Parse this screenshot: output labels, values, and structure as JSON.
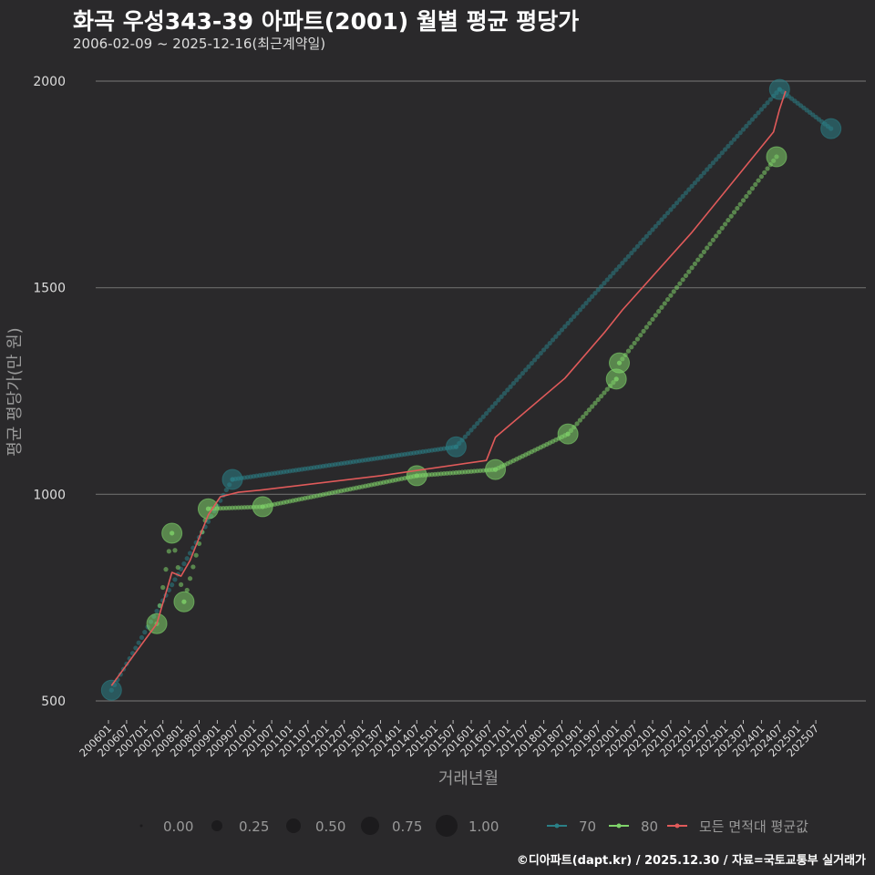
{
  "title": "화곡 우성343-39 아파트(2001) 월별 평균 평당가",
  "subtitle": "2006-02-09 ~ 2025-12-16(최근계약일)",
  "footer": "©디아파트(dapt.kr) / 2025.12.30 / 자료=국토교통부 실거래가",
  "chart_data": {
    "type": "line",
    "xlabel": "거래년월",
    "ylabel": "평균 평당가(만 원)",
    "ylim": [
      500,
      2000
    ],
    "yticks": [
      "500",
      "1000",
      "1500",
      "2000"
    ],
    "ytick_values": [
      500,
      1000,
      1500,
      2000
    ],
    "xticks": [
      "200601",
      "200607",
      "200701",
      "200707",
      "200801",
      "200807",
      "200901",
      "200907",
      "201001",
      "201007",
      "201101",
      "201107",
      "201201",
      "201207",
      "201301",
      "201307",
      "201401",
      "201407",
      "201501",
      "201507",
      "201601",
      "201607",
      "201701",
      "201707",
      "201801",
      "201807",
      "201901",
      "201907",
      "202001",
      "202007",
      "202101",
      "202107",
      "202201",
      "202207",
      "202301",
      "202307",
      "202401",
      "202407",
      "202501",
      "202507"
    ],
    "grid": true,
    "legend_position": "bottom",
    "size_legend": {
      "labels": [
        "0.00",
        "0.25",
        "0.50",
        "0.75",
        "1.00"
      ]
    },
    "series": [
      {
        "name": "70",
        "color": "#2a7f86",
        "points": [
          [
            "200602",
            526
          ],
          [
            "200906",
            1036
          ],
          [
            "201508",
            1115
          ],
          [
            "202407",
            1980
          ],
          [
            "202512",
            1885
          ]
        ]
      },
      {
        "name": "80",
        "color": "#7fd36a",
        "points": [
          [
            "200705",
            687
          ],
          [
            "200710",
            906
          ],
          [
            "200802",
            740
          ],
          [
            "200810",
            965
          ],
          [
            "201004",
            970
          ],
          [
            "201407",
            1045
          ],
          [
            "201609",
            1060
          ],
          [
            "201809",
            1146
          ],
          [
            "202001",
            1279
          ],
          [
            "202002",
            1318
          ],
          [
            "202406",
            1817
          ]
        ]
      },
      {
        "name": "모든 면적대 평균값",
        "color": "#e05a5a",
        "points": [
          [
            "200602",
            537
          ],
          [
            "200705",
            687
          ],
          [
            "200710",
            811
          ],
          [
            "200801",
            802
          ],
          [
            "200804",
            840
          ],
          [
            "200810",
            950
          ],
          [
            "200902",
            994
          ],
          [
            "200908",
            1005
          ],
          [
            "201003",
            1010
          ],
          [
            "201307",
            1045
          ],
          [
            "201606",
            1082
          ],
          [
            "201609",
            1138
          ],
          [
            "201808",
            1281
          ],
          [
            "201909",
            1391
          ],
          [
            "202003",
            1446
          ],
          [
            "202202",
            1634
          ],
          [
            "202405",
            1877
          ],
          [
            "202407",
            1932
          ],
          [
            "202409",
            1976
          ]
        ]
      }
    ]
  }
}
